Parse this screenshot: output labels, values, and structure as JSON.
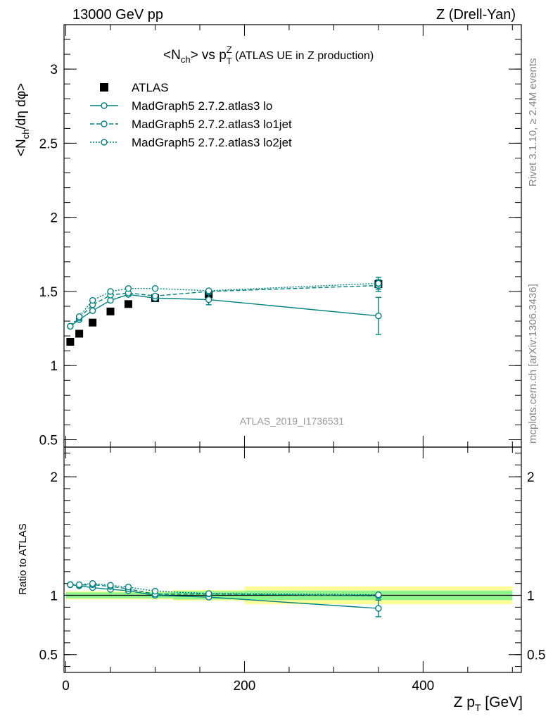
{
  "header": {
    "left": "13000 GeV pp",
    "right": "Z (Drell-Yan)"
  },
  "side_labels": {
    "rivet": "Rivet 3.1.10, ≥ 2.4M events",
    "mcplots": "mcplots.cern.ch [arXiv:1306.3436]"
  },
  "watermark": "ATLAS_2019_I1736531",
  "colors": {
    "mc": "#008080",
    "band_inner": "#8ff58f",
    "band_outer": "#ffff99",
    "data": "#000000"
  },
  "chart_data": [
    {
      "type": "line",
      "title": "<N_ch> vs p_T^Z (ATLAS UE in Z production)",
      "title_parts": {
        "pre": "<N",
        "sub1": "ch",
        "mid": "> vs p",
        "sub2": "T",
        "sup2": "Z",
        "post": " (ATLAS UE in Z production)"
      },
      "ylabel": "<N_ch/dη dφ>",
      "ylabel_parts": {
        "pre": "<N",
        "sub": "ch",
        "post": "/dη dφ>"
      },
      "xlim": [
        -2,
        510
      ],
      "ylim": [
        0.45,
        3.3
      ],
      "yticks": [
        0.5,
        1,
        1.5,
        2,
        2.5,
        3
      ],
      "ytick_labels": [
        "0.5",
        "1",
        "1.5",
        "2",
        "2.5",
        "3"
      ],
      "legend_position": "top-left",
      "data_series": {
        "name": "ATLAS",
        "x": [
          5,
          15,
          30,
          50,
          70,
          100,
          160,
          350
        ],
        "y": [
          1.16,
          1.215,
          1.29,
          1.365,
          1.415,
          1.455,
          1.48,
          1.55
        ]
      },
      "series": [
        {
          "name": "MadGraph5 2.7.2.atlas3 lo",
          "style": "solid",
          "x": [
            5,
            15,
            30,
            50,
            70,
            100,
            160,
            350
          ],
          "y": [
            1.265,
            1.31,
            1.37,
            1.44,
            1.48,
            1.455,
            1.445,
            1.335
          ],
          "yerr": [
            0.006,
            0.008,
            0.01,
            0.012,
            0.015,
            0.02,
            0.035,
            0.125
          ]
        },
        {
          "name": "MadGraph5 2.7.2.atlas3 lo1jet",
          "style": "dashed",
          "x": [
            5,
            15,
            30,
            50,
            70,
            100,
            160,
            350
          ],
          "y": [
            1.265,
            1.32,
            1.41,
            1.475,
            1.49,
            1.47,
            1.5,
            1.54
          ],
          "yerr": [
            0.005,
            0.007,
            0.008,
            0.01,
            0.012,
            0.015,
            0.02,
            0.04
          ]
        },
        {
          "name": "MadGraph5 2.7.2.atlas3 lo2jet",
          "style": "dotted",
          "x": [
            5,
            15,
            30,
            50,
            70,
            100,
            160,
            350
          ],
          "y": [
            1.265,
            1.33,
            1.44,
            1.5,
            1.52,
            1.52,
            1.505,
            1.555
          ],
          "yerr": [
            0.005,
            0.007,
            0.008,
            0.01,
            0.012,
            0.015,
            0.02,
            0.04
          ]
        }
      ]
    },
    {
      "type": "line",
      "ylabel": "Ratio to ATLAS",
      "xlabel": "Z p_T [GeV]",
      "xlabel_parts": {
        "pre": "Z p",
        "sub": "T",
        "post": " [GeV]"
      },
      "xlim": [
        -2,
        510
      ],
      "ylim": [
        0.35,
        2.25
      ],
      "yticks": [
        0.5,
        1,
        2
      ],
      "ytick_labels": [
        "0.5",
        "1",
        "2"
      ],
      "xticks": [
        0,
        200,
        400
      ],
      "xtick_labels": [
        "0",
        "200",
        "400"
      ],
      "reference_line": 1.0,
      "bands": [
        {
          "x_low": 0,
          "x_high": 120,
          "inner": [
            0.975,
            1.025
          ],
          "outer": [
            0.965,
            1.035
          ]
        },
        {
          "x_low": 120,
          "x_high": 200,
          "inner": [
            0.965,
            1.035
          ],
          "outer": [
            0.955,
            1.045
          ]
        },
        {
          "x_low": 200,
          "x_high": 500,
          "inner": [
            0.96,
            1.04
          ],
          "outer": [
            0.925,
            1.075
          ]
        }
      ],
      "series": [
        {
          "name": "MadGraph5 2.7.2.atlas3 lo",
          "style": "solid",
          "x": [
            5,
            15,
            30,
            50,
            70,
            100,
            160,
            350
          ],
          "y": [
            1.09,
            1.08,
            1.065,
            1.05,
            1.04,
            1.0,
            0.985,
            0.89
          ],
          "yerr": [
            0.005,
            0.006,
            0.007,
            0.008,
            0.01,
            0.012,
            0.02,
            0.07
          ]
        },
        {
          "name": "MadGraph5 2.7.2.atlas3 lo1jet",
          "style": "dashed",
          "x": [
            5,
            15,
            30,
            50,
            70,
            100,
            160,
            350
          ],
          "y": [
            1.09,
            1.085,
            1.09,
            1.075,
            1.055,
            1.01,
            1.012,
            0.995
          ],
          "yerr": [
            0.005,
            0.006,
            0.007,
            0.008,
            0.01,
            0.012,
            0.015,
            0.025
          ]
        },
        {
          "name": "MadGraph5 2.7.2.atlas3 lo2jet",
          "style": "dotted",
          "x": [
            5,
            15,
            30,
            50,
            70,
            100,
            160,
            350
          ],
          "y": [
            1.09,
            1.09,
            1.1,
            1.085,
            1.07,
            1.035,
            1.015,
            1.005
          ],
          "yerr": [
            0.005,
            0.006,
            0.007,
            0.008,
            0.01,
            0.012,
            0.015,
            0.025
          ]
        }
      ]
    }
  ]
}
